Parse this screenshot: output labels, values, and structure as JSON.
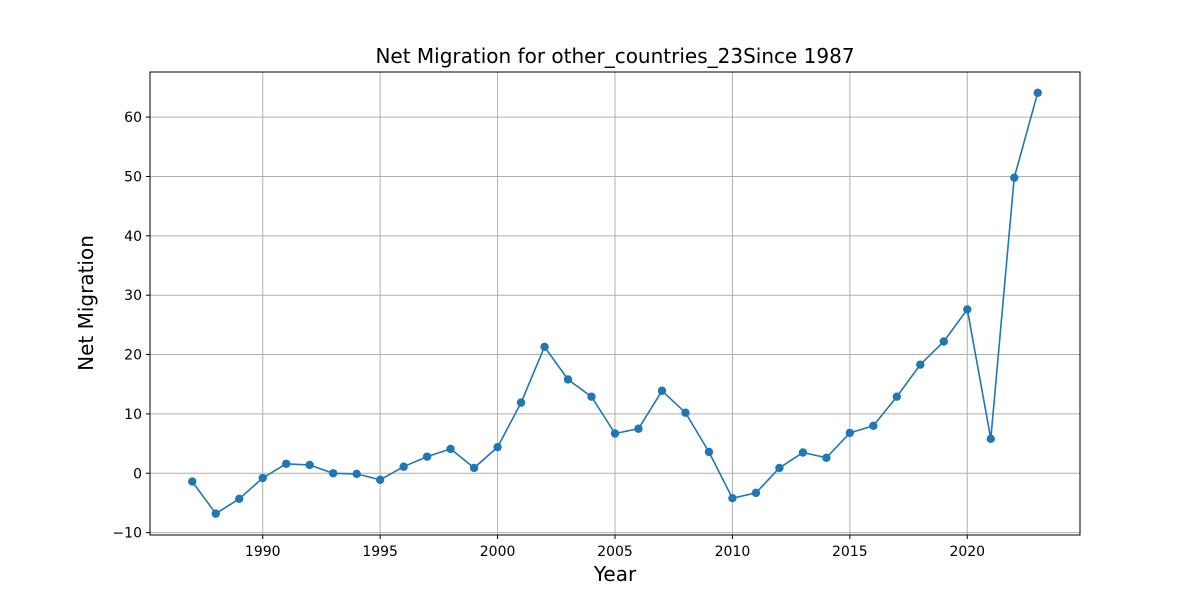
{
  "chart_data": {
    "type": "line",
    "title": "Net Migration for other_countries_23Since 1987",
    "xlabel": "Year",
    "ylabel": "Net Migration",
    "xlim": [
      1985.2,
      2024.8
    ],
    "ylim": [
      -10.4,
      67.6
    ],
    "xticks": [
      1990,
      1995,
      2000,
      2005,
      2010,
      2015,
      2020
    ],
    "yticks": [
      -10,
      0,
      10,
      20,
      30,
      40,
      50,
      60
    ],
    "grid": true,
    "marker": "circle",
    "color": "#1f77b4",
    "series": [
      {
        "x": [
          1987,
          1988,
          1989,
          1990,
          1991,
          1992,
          1993,
          1994,
          1995,
          1996,
          1997,
          1998,
          1999,
          2000,
          2001,
          2002,
          2003,
          2004,
          2005,
          2006,
          2007,
          2008,
          2009,
          2010,
          2011,
          2012,
          2013,
          2014,
          2015,
          2016,
          2017,
          2018,
          2019,
          2020,
          2021,
          2022,
          2023
        ],
        "values": [
          -1.4,
          -6.8,
          -4.3,
          -0.8,
          1.6,
          1.4,
          0.0,
          -0.1,
          -1.1,
          1.1,
          2.8,
          4.1,
          0.9,
          4.4,
          11.9,
          21.3,
          15.8,
          12.9,
          6.7,
          7.5,
          13.9,
          10.2,
          3.6,
          -4.2,
          -3.3,
          0.9,
          3.5,
          2.6,
          6.8,
          8.0,
          12.9,
          18.3,
          22.2,
          27.6,
          5.8,
          49.8,
          64.1
        ]
      }
    ]
  }
}
